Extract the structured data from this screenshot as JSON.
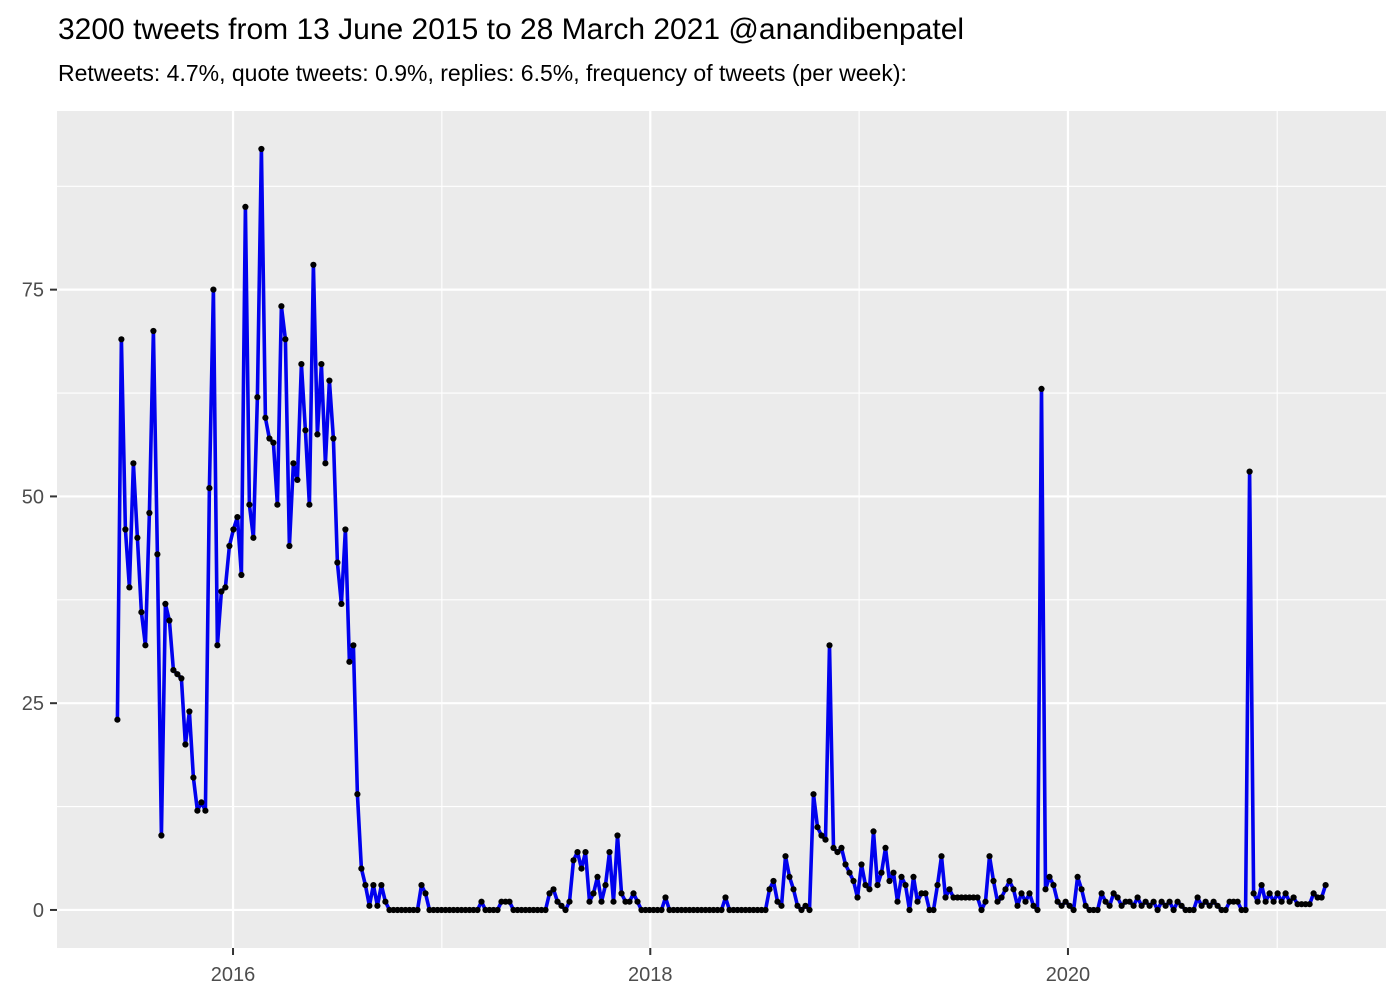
{
  "header": {
    "title": "3200 tweets from 13 June 2015 to 28 March 2021 @anandibenpatel",
    "subtitle": "Retweets: 4.7%, quote tweets: 0.9%, replies: 6.5%, frequency of tweets (per week):"
  },
  "chart_data": {
    "type": "line",
    "title": "3200 tweets from 13 June 2015 to 28 March 2021 @anandibenpatel",
    "subtitle": "Retweets: 4.7%, quote tweets: 0.9%, replies: 6.5%, frequency of tweets (per week):",
    "xlabel": "",
    "ylabel": "",
    "x_unit": "weeks since 13 June 2015",
    "legend_position": "none",
    "grid": true,
    "ylim": [
      0,
      92
    ],
    "y_axis": {
      "ticks": [
        0,
        25,
        50,
        75
      ],
      "minor": [
        12.5,
        37.5,
        62.5,
        87.5
      ]
    },
    "x_axis": {
      "ticks": [
        {
          "label": "2016",
          "week": 28.9
        },
        {
          "label": "2018",
          "week": 133.2
        },
        {
          "label": "2020",
          "week": 237.6
        }
      ],
      "minor_weeks": [
        81.1,
        185.4,
        289.9
      ]
    },
    "series": [
      {
        "name": "tweets per week",
        "values": [
          23,
          69,
          46,
          39,
          54,
          45,
          36,
          32,
          48,
          70,
          43,
          9,
          37,
          35,
          29,
          28.5,
          28,
          20,
          24,
          16,
          12,
          13,
          12,
          51,
          75,
          32,
          38.5,
          39,
          44,
          46,
          47.5,
          40.5,
          85,
          49,
          45,
          62,
          92,
          59.5,
          57,
          56.5,
          49,
          73,
          69,
          44,
          54,
          52,
          66,
          58,
          49,
          78,
          57.5,
          66,
          54,
          64,
          57,
          42,
          37,
          46,
          30,
          32,
          14,
          5,
          3,
          0.5,
          3,
          0.5,
          3,
          1,
          0,
          0,
          0,
          0,
          0,
          0,
          0,
          0,
          3,
          2,
          0,
          0,
          0,
          0,
          0,
          0,
          0,
          0,
          0,
          0,
          0,
          0,
          0,
          1,
          0,
          0,
          0,
          0,
          1,
          1,
          1,
          0,
          0,
          0,
          0,
          0,
          0,
          0,
          0,
          0,
          2,
          2.5,
          1,
          0.5,
          0,
          1,
          6,
          7,
          5,
          7,
          1,
          2,
          4,
          1,
          3,
          7,
          1,
          9,
          2,
          1,
          1,
          2,
          1,
          0,
          0,
          0,
          0,
          0,
          0,
          1.5,
          0,
          0,
          0,
          0,
          0,
          0,
          0,
          0,
          0,
          0,
          0,
          0,
          0,
          0,
          1.5,
          0,
          0,
          0,
          0,
          0,
          0,
          0,
          0,
          0,
          0,
          2.5,
          3.5,
          1,
          0.5,
          6.5,
          4,
          2.5,
          0.5,
          0,
          0.5,
          0,
          14,
          10,
          9,
          8.5,
          32,
          7.5,
          7,
          7.5,
          5.5,
          4.5,
          3.5,
          1.5,
          5.5,
          3,
          2.5,
          9.5,
          3,
          4.5,
          7.5,
          3.5,
          4.5,
          1,
          4,
          3,
          0,
          4,
          1,
          2,
          2,
          0,
          0,
          3,
          6.5,
          1.5,
          2.5,
          1.5,
          1.5,
          1.5,
          1.5,
          1.5,
          1.5,
          1.5,
          0,
          1,
          6.5,
          3.5,
          1,
          1.5,
          2.5,
          3.5,
          2.5,
          0.5,
          2,
          1,
          2,
          0.5,
          0,
          63,
          2.5,
          4,
          3,
          1,
          0.5,
          1,
          0.5,
          0,
          4,
          2.5,
          0.5,
          0,
          0,
          0,
          2,
          1,
          0.5,
          2,
          1.5,
          0.5,
          1,
          1,
          0.5,
          1.5,
          0.5,
          1,
          0.5,
          1,
          0,
          1,
          0.5,
          1,
          0,
          1,
          0.5,
          0,
          0,
          0,
          1.5,
          0.5,
          1,
          0.5,
          1,
          0.5,
          0,
          0,
          1,
          1,
          1,
          0,
          0,
          53,
          2,
          1,
          3,
          1,
          2,
          1,
          2,
          1,
          2,
          1,
          1.5,
          0.7,
          0.7,
          0.7,
          0.7,
          2,
          1.5,
          1.5,
          3
        ]
      }
    ],
    "style": {
      "panel_bg": "#EBEBEB",
      "grid_color": "#FFFFFF",
      "line_color": "#0101EE",
      "point_color": "#000000",
      "axis_text_color": "#4D4D4D",
      "tick_mark_color": "#333333",
      "title_color": "#000000"
    }
  }
}
